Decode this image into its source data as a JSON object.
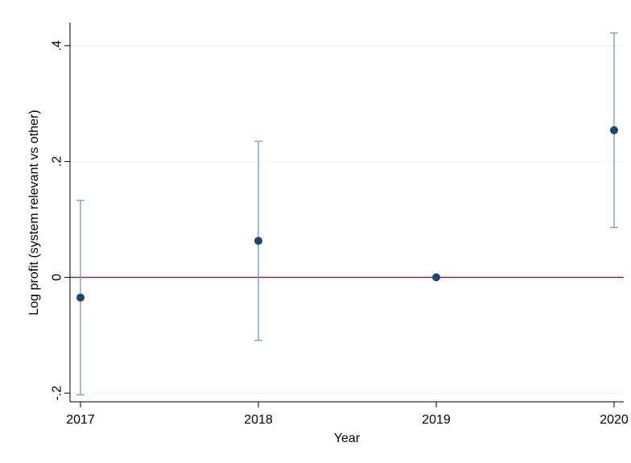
{
  "chart_data": {
    "type": "scatter",
    "title": "",
    "xlabel": "Year",
    "ylabel": "Log profit (system relevant vs other)",
    "x_ticks": [
      "2017",
      "2018",
      "2019",
      "2020"
    ],
    "y_ticks": [
      -0.2,
      0,
      0.2,
      0.4
    ],
    "y_tick_labels": [
      "-.2",
      "0",
      ".2",
      ".4"
    ],
    "xlim": [
      2017,
      2020
    ],
    "ylim": [
      -0.215,
      0.44
    ],
    "grid": "horizontal",
    "reference_line": {
      "y": 0
    },
    "series": [
      {
        "points": [
          {
            "x": 2017,
            "y": -0.035,
            "lower": -0.203,
            "upper": 0.133
          },
          {
            "x": 2018,
            "y": 0.063,
            "lower": -0.109,
            "upper": 0.235
          },
          {
            "x": 2019,
            "y": 0.0,
            "lower": 0.0,
            "upper": 0.0
          },
          {
            "x": 2020,
            "y": 0.254,
            "lower": 0.086,
            "upper": 0.422
          }
        ]
      }
    ],
    "colors": {
      "marker": "#1a476f",
      "error_bar": "#7f9fbf",
      "reference_line": "#8b1a3e",
      "grid": "#eaf2f3",
      "axis": "#000000"
    }
  }
}
